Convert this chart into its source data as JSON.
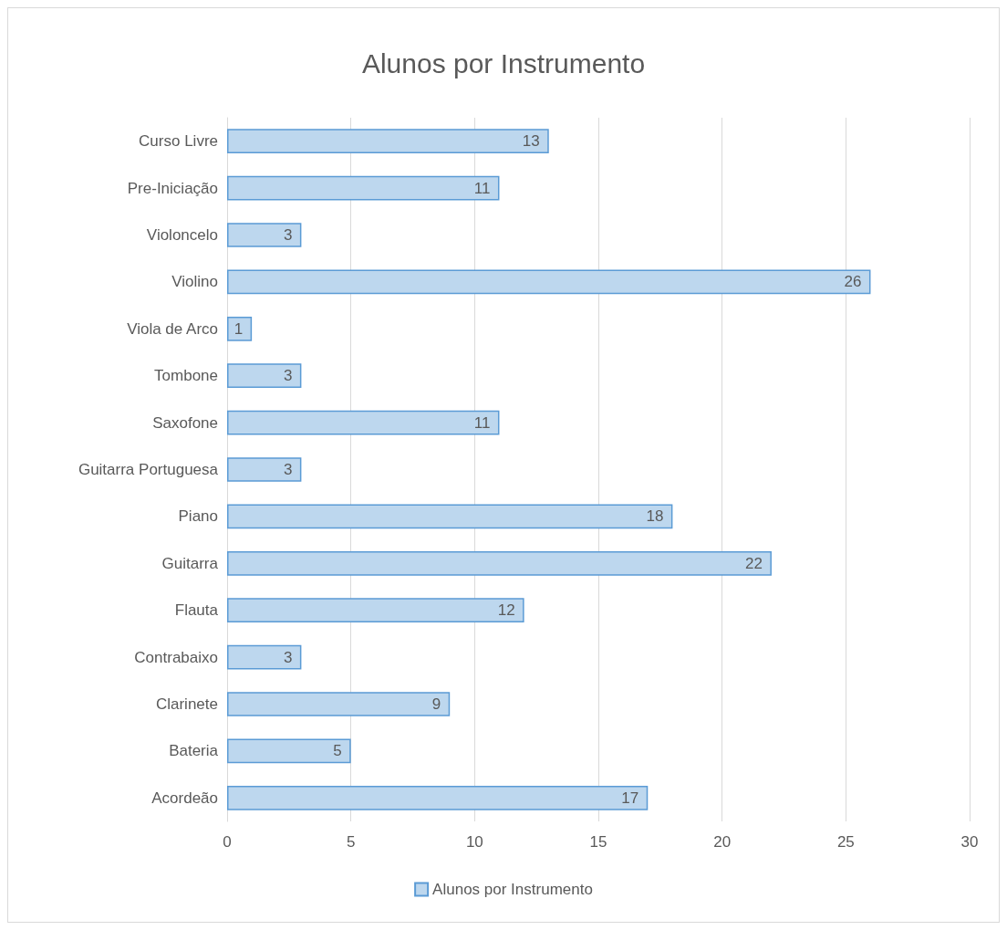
{
  "chart_data": {
    "type": "bar",
    "orientation": "horizontal",
    "title": "Alunos por Instrumento",
    "categories": [
      "Curso Livre",
      "Pre-Iniciação",
      "Violoncelo",
      "Violino",
      "Viola de Arco",
      "Tombone",
      "Saxofone",
      "Guitarra Portuguesa",
      "Piano",
      "Guitarra",
      "Flauta",
      "Contrabaixo",
      "Clarinete",
      "Bateria",
      "Acordeão"
    ],
    "series": [
      {
        "name": "Alunos por Instrumento",
        "color": "#bdd7ee",
        "values": [
          13,
          11,
          3,
          26,
          1,
          3,
          11,
          3,
          18,
          22,
          12,
          3,
          9,
          5,
          17
        ]
      }
    ],
    "xlim": [
      0,
      30
    ],
    "xticks": [
      0,
      5,
      10,
      15,
      20,
      25,
      30
    ],
    "grid": "x",
    "legend": "bottom",
    "data_labels": true
  }
}
